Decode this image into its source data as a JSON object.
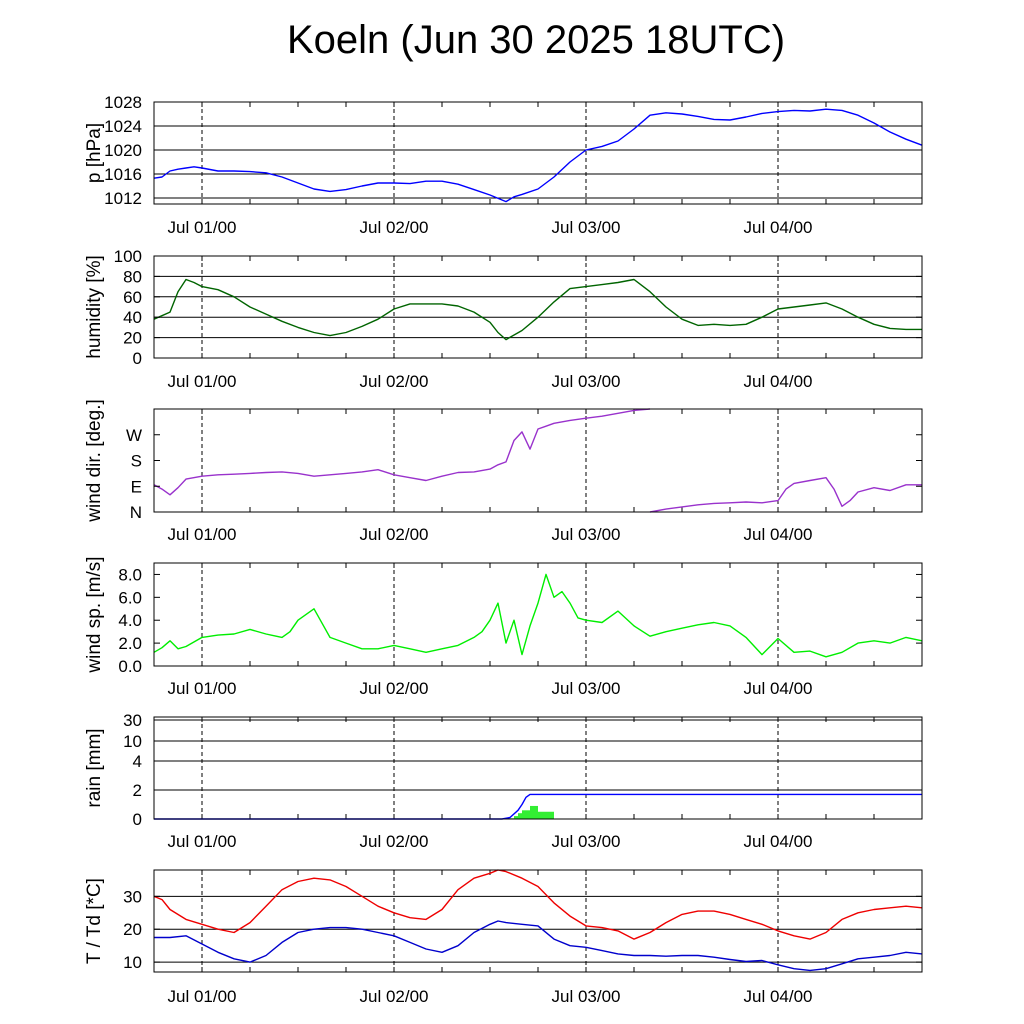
{
  "title": "Koeln (Jun 30 2025 18UTC)",
  "chart_data": [
    {
      "type": "line",
      "ylabel": "p [hPa]",
      "x_tick_labels": [
        "Jul 01/00",
        "Jul 02/00",
        "Jul 03/00",
        "Jul 04/00"
      ],
      "x_hours_since_start_tick": [
        6,
        30,
        54,
        78
      ],
      "x_range_hours": [
        0,
        96
      ],
      "ylim": [
        1011,
        1028
      ],
      "y_ticks": [
        1012,
        1016,
        1020,
        1024,
        1028
      ],
      "y_tick_labels": [
        "1012",
        "1016",
        "1020",
        "1024",
        "1028"
      ],
      "gridlines": [
        1012,
        1016,
        1020,
        1024
      ],
      "series": [
        {
          "color": "#0000ff",
          "x": [
            0,
            1,
            2,
            3,
            4,
            5,
            6,
            8,
            10,
            12,
            14,
            16,
            18,
            20,
            22,
            24,
            26,
            28,
            30,
            32,
            34,
            36,
            38,
            40,
            42,
            44,
            45,
            46,
            48,
            50,
            52,
            54,
            56,
            58,
            60,
            62,
            64,
            66,
            68,
            70,
            72,
            74,
            76,
            78,
            80,
            82,
            84,
            86,
            88,
            90,
            92,
            94,
            96
          ],
          "y": [
            1015.3,
            1015.5,
            1016.5,
            1016.8,
            1017.0,
            1017.2,
            1017.0,
            1016.5,
            1016.5,
            1016.4,
            1016.2,
            1015.5,
            1014.5,
            1013.5,
            1013.1,
            1013.4,
            1014.0,
            1014.5,
            1014.5,
            1014.4,
            1014.8,
            1014.8,
            1014.3,
            1013.4,
            1012.5,
            1011.4,
            1012.2,
            1012.6,
            1013.5,
            1015.5,
            1018.0,
            1020.0,
            1020.6,
            1021.5,
            1023.5,
            1025.8,
            1026.2,
            1026.0,
            1025.6,
            1025.1,
            1025.0,
            1025.5,
            1026.1,
            1026.4,
            1026.6,
            1026.5,
            1026.8,
            1026.6,
            1025.8,
            1024.5,
            1023.0,
            1021.8,
            1020.8
          ]
        }
      ]
    },
    {
      "type": "line",
      "ylabel": "humidity [%]",
      "x_tick_labels": [
        "Jul 01/00",
        "Jul 02/00",
        "Jul 03/00",
        "Jul 04/00"
      ],
      "x_hours_since_start_tick": [
        6,
        30,
        54,
        78
      ],
      "x_range_hours": [
        0,
        96
      ],
      "ylim": [
        0,
        100
      ],
      "y_ticks": [
        0,
        20,
        40,
        60,
        80,
        100
      ],
      "y_tick_labels": [
        "0",
        "20",
        "40",
        "60",
        "80",
        "100"
      ],
      "gridlines": [
        20,
        40,
        60,
        80
      ],
      "series": [
        {
          "color": "#006400",
          "x": [
            0,
            2,
            3,
            4,
            5,
            6,
            8,
            10,
            12,
            14,
            16,
            18,
            20,
            22,
            24,
            26,
            28,
            30,
            32,
            34,
            36,
            38,
            40,
            42,
            43,
            44,
            46,
            48,
            50,
            52,
            54,
            56,
            58,
            60,
            62,
            64,
            66,
            68,
            70,
            72,
            74,
            76,
            78,
            80,
            82,
            84,
            86,
            88,
            90,
            92,
            94,
            96
          ],
          "y": [
            38,
            45,
            65,
            77,
            74,
            70,
            67,
            60,
            50,
            43,
            36,
            30,
            25,
            22,
            25,
            31,
            38,
            48,
            53,
            53,
            53,
            51,
            45,
            35,
            25,
            18,
            27,
            40,
            55,
            68,
            70,
            72,
            74,
            77,
            65,
            50,
            38,
            32,
            33,
            32,
            33,
            40,
            48,
            50,
            52,
            54,
            48,
            40,
            33,
            29,
            28,
            28
          ]
        }
      ]
    },
    {
      "type": "line",
      "ylabel": "wind dir. [deg.]",
      "x_tick_labels": [
        "Jul 01/00",
        "Jul 02/00",
        "Jul 03/00",
        "Jul 04/00"
      ],
      "x_hours_since_start_tick": [
        6,
        30,
        54,
        78
      ],
      "x_range_hours": [
        0,
        96
      ],
      "ylim": [
        0,
        360
      ],
      "y_ticks": [
        0,
        90,
        180,
        270
      ],
      "y_tick_labels": [
        "N",
        "E",
        "S",
        "W"
      ],
      "gridlines": [],
      "series": [
        {
          "color": "#9932cc",
          "x": [
            0,
            1,
            2,
            3,
            4,
            6,
            8,
            10,
            12,
            14,
            16,
            18,
            20,
            22,
            24,
            26,
            28,
            30,
            32,
            34,
            36,
            38,
            40,
            42,
            43,
            44,
            45,
            46,
            47,
            48,
            49,
            50,
            52,
            54,
            56,
            58,
            60,
            62
          ],
          "y": [
            95,
            80,
            60,
            85,
            115,
            125,
            130,
            132,
            135,
            138,
            140,
            135,
            125,
            130,
            135,
            140,
            148,
            130,
            120,
            110,
            125,
            138,
            140,
            150,
            165,
            175,
            250,
            280,
            220,
            290,
            300,
            310,
            320,
            328,
            335,
            345,
            355,
            360
          ]
        },
        {
          "color": "#9932cc",
          "x": [
            62,
            64,
            66,
            68,
            70,
            72,
            74,
            76,
            78,
            79,
            80,
            82,
            84,
            85,
            86,
            87,
            88,
            90,
            92,
            94,
            96
          ],
          "y": [
            0,
            10,
            18,
            25,
            30,
            32,
            35,
            32,
            40,
            80,
            100,
            110,
            120,
            80,
            20,
            40,
            70,
            85,
            75,
            95,
            95
          ]
        }
      ]
    },
    {
      "type": "line",
      "ylabel": "wind sp. [m/s]",
      "x_tick_labels": [
        "Jul 01/00",
        "Jul 02/00",
        "Jul 03/00",
        "Jul 04/00"
      ],
      "x_hours_since_start_tick": [
        6,
        30,
        54,
        78
      ],
      "x_range_hours": [
        0,
        96
      ],
      "ylim": [
        0,
        9
      ],
      "y_ticks": [
        0,
        2,
        4,
        6,
        8
      ],
      "y_tick_labels": [
        "0.0",
        "2.0",
        "4.0",
        "6.0",
        "8.0"
      ],
      "gridlines": [],
      "series": [
        {
          "color": "#00ee00",
          "x": [
            0,
            1,
            2,
            3,
            4,
            6,
            8,
            10,
            12,
            14,
            16,
            17,
            18,
            20,
            22,
            24,
            26,
            28,
            30,
            32,
            34,
            36,
            38,
            40,
            41,
            42,
            43,
            44,
            45,
            46,
            47,
            48,
            49,
            50,
            51,
            52,
            53,
            54,
            56,
            58,
            60,
            62,
            64,
            66,
            68,
            70,
            72,
            74,
            76,
            78,
            80,
            82,
            84,
            86,
            88,
            90,
            92,
            94,
            96
          ],
          "y": [
            1.2,
            1.6,
            2.2,
            1.5,
            1.7,
            2.5,
            2.7,
            2.8,
            3.2,
            2.8,
            2.5,
            3.0,
            4.0,
            5.0,
            2.5,
            2.0,
            1.5,
            1.5,
            1.8,
            1.5,
            1.2,
            1.5,
            1.8,
            2.5,
            3.0,
            4.0,
            5.5,
            2.0,
            4.0,
            1.0,
            3.5,
            5.5,
            8.0,
            6.0,
            6.5,
            5.5,
            4.2,
            4.0,
            3.8,
            4.8,
            3.5,
            2.6,
            3.0,
            3.3,
            3.6,
            3.8,
            3.5,
            2.5,
            1.0,
            2.4,
            1.2,
            1.3,
            0.8,
            1.2,
            2.0,
            2.2,
            2.0,
            2.5,
            2.2
          ]
        }
      ]
    },
    {
      "type": "bar",
      "ylabel": "rain [mm]",
      "x_tick_labels": [
        "Jul 01/00",
        "Jul 02/00",
        "Jul 03/00",
        "Jul 04/00"
      ],
      "x_hours_since_start_tick": [
        6,
        30,
        54,
        78
      ],
      "x_range_hours": [
        0,
        96
      ],
      "y_scale": "nonlinear",
      "y_ticks": [
        0,
        2,
        4,
        10,
        30
      ],
      "y_tick_labels": [
        "0",
        "2",
        "4",
        "10",
        "30"
      ],
      "gridlines": [
        2,
        4,
        10,
        30
      ],
      "bars": {
        "color": "#33ee33",
        "x_start": [
          44.0,
          45.0,
          45.5,
          46.0,
          47.0,
          48.0,
          49.0
        ],
        "x_end": [
          45.0,
          45.5,
          46.0,
          47.0,
          48.0,
          49.0,
          50.0
        ],
        "values": [
          0.05,
          0.2,
          0.4,
          0.6,
          0.9,
          0.5,
          0.5
        ]
      },
      "series": [
        {
          "color": "#0000ff",
          "x": [
            0,
            43.5,
            44.5,
            45.5,
            46.0,
            46.5,
            47.0,
            96
          ],
          "y": [
            0,
            0,
            0.1,
            0.6,
            1.0,
            1.5,
            1.7,
            1.7
          ]
        }
      ]
    },
    {
      "type": "line",
      "ylabel": "T / Td [*C]",
      "x_tick_labels": [
        "Jul 01/00",
        "Jul 02/00",
        "Jul 03/00",
        "Jul 04/00"
      ],
      "x_hours_since_start_tick": [
        6,
        30,
        54,
        78
      ],
      "x_range_hours": [
        0,
        96
      ],
      "ylim": [
        7,
        38
      ],
      "y_ticks": [
        10,
        20,
        30
      ],
      "y_tick_labels": [
        "10",
        "20",
        "30"
      ],
      "gridlines": [
        10,
        20,
        30
      ],
      "series": [
        {
          "color": "#ee0000",
          "x": [
            0,
            1,
            2,
            4,
            6,
            8,
            10,
            12,
            14,
            16,
            18,
            20,
            22,
            24,
            26,
            28,
            30,
            32,
            34,
            36,
            38,
            40,
            42,
            43,
            44,
            46,
            48,
            50,
            52,
            54,
            56,
            58,
            60,
            62,
            64,
            66,
            68,
            70,
            72,
            74,
            76,
            78,
            80,
            82,
            84,
            86,
            88,
            90,
            92,
            94,
            96
          ],
          "y": [
            30,
            29,
            26,
            23,
            21.5,
            20,
            19,
            22,
            27,
            32,
            34.5,
            35.5,
            35,
            33,
            30,
            27,
            25,
            23.5,
            23,
            26,
            32,
            35.5,
            37,
            38,
            37.5,
            35.5,
            33,
            28,
            24,
            21,
            20.5,
            19.5,
            17,
            19,
            22,
            24.5,
            25.5,
            25.5,
            24.5,
            23,
            21.5,
            19.5,
            18,
            17,
            19,
            23,
            25,
            26,
            26.5,
            27,
            26.5
          ]
        },
        {
          "color": "#0000cc",
          "x": [
            0,
            2,
            4,
            6,
            8,
            10,
            12,
            14,
            16,
            18,
            20,
            22,
            24,
            26,
            28,
            30,
            32,
            34,
            36,
            38,
            40,
            42,
            43,
            44,
            46,
            48,
            50,
            52,
            54,
            56,
            58,
            60,
            62,
            64,
            66,
            68,
            70,
            72,
            74,
            76,
            78,
            80,
            82,
            84,
            86,
            88,
            90,
            92,
            94,
            96
          ],
          "y": [
            17.5,
            17.5,
            18,
            15.5,
            13,
            11,
            10,
            12,
            16,
            19,
            20,
            20.5,
            20.5,
            20,
            19,
            18,
            16,
            14,
            13,
            15,
            19,
            21.5,
            22.5,
            22,
            21.5,
            21,
            17,
            15,
            14.5,
            13.5,
            12.5,
            12,
            12,
            11.8,
            12,
            12,
            11.5,
            10.8,
            10.2,
            10.5,
            9.2,
            8,
            7.5,
            8,
            9.5,
            11,
            11.5,
            12,
            13,
            12.5
          ]
        }
      ]
    }
  ]
}
